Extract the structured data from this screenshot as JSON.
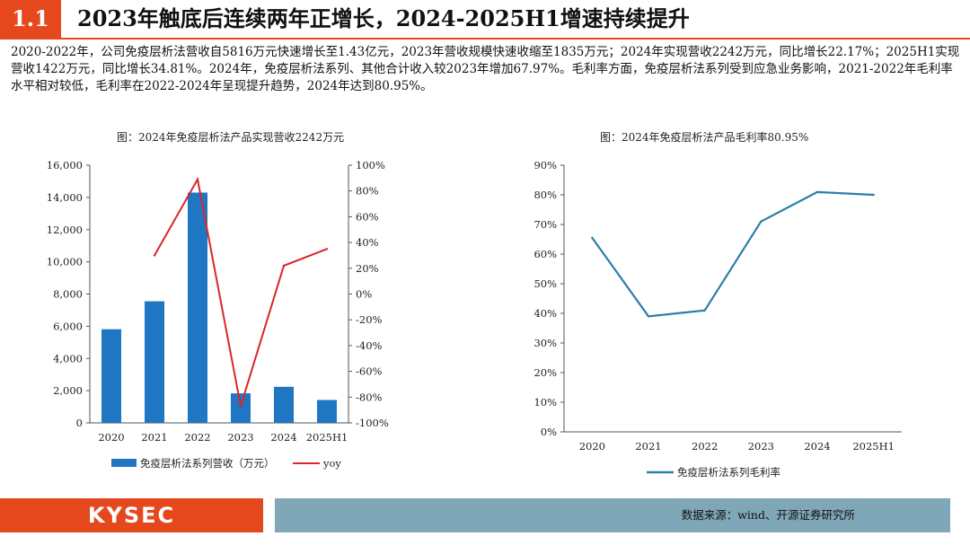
{
  "header": {
    "section_number": "1.1",
    "title": "2023年触底后连续两年正增长，2024-2025H1增速持续提升"
  },
  "summary": "2020-2022年，公司免疫层析法营收自5816万元快速增长至1.43亿元，2023年营收规模快速收缩至1835万元；2024年实现营收2242万元，同比增长22.17%；2025H1实现营收1422万元，同比增长34.81%。2024年，免疫层析法系列、其他合计收入较2023年增加67.97%。毛利率方面，免疫层析法系列受到应急业务影响，2021-2022年毛利率水平相对较低，毛利率在2022-2024年呈现提升趋势，2024年达到80.95%。",
  "chart_data": [
    {
      "type": "bar",
      "title": "图：2024年免疫层析法产品实现营收2242万元",
      "categories": [
        "2020",
        "2021",
        "2022",
        "2023",
        "2024",
        "2025H1"
      ],
      "series": [
        {
          "name": "免疫层析法系列营收（万元）",
          "type": "bar",
          "axis": "left",
          "values": [
            5816,
            7550,
            14300,
            1835,
            2242,
            1422
          ]
        },
        {
          "name": "yoy",
          "type": "line",
          "axis": "right",
          "values": [
            null,
            30,
            89,
            -87,
            22,
            35
          ]
        }
      ],
      "ylim": [
        0,
        16000
      ],
      "yticks": [
        "0",
        "2,000",
        "4,000",
        "6,000",
        "8,000",
        "10,000",
        "12,000",
        "14,000",
        "16,000"
      ],
      "y2lim": [
        -100,
        100
      ],
      "y2ticks": [
        "-100%",
        "-80%",
        "-60%",
        "-40%",
        "-20%",
        "0%",
        "20%",
        "40%",
        "60%",
        "80%",
        "100%"
      ],
      "legend_position": "bottom",
      "colors": {
        "bar": "#1f77c4",
        "line": "#d9262a"
      }
    },
    {
      "type": "line",
      "title": "图：2024年免疫层析法产品毛利率80.95%",
      "categories": [
        "2020",
        "2021",
        "2022",
        "2023",
        "2024",
        "2025H1"
      ],
      "series": [
        {
          "name": "免疫层析法系列毛利率",
          "values": [
            65.5,
            39,
            41,
            71,
            80.95,
            80
          ]
        }
      ],
      "ylim": [
        0,
        90
      ],
      "yticks": [
        "0%",
        "10%",
        "20%",
        "30%",
        "40%",
        "50%",
        "60%",
        "70%",
        "80%",
        "90%"
      ],
      "legend_position": "bottom",
      "colors": {
        "line": "#2a7fa8"
      }
    }
  ],
  "footer": {
    "logo": "KYSEC",
    "source": "数据来源：wind、开源证券研究所"
  }
}
